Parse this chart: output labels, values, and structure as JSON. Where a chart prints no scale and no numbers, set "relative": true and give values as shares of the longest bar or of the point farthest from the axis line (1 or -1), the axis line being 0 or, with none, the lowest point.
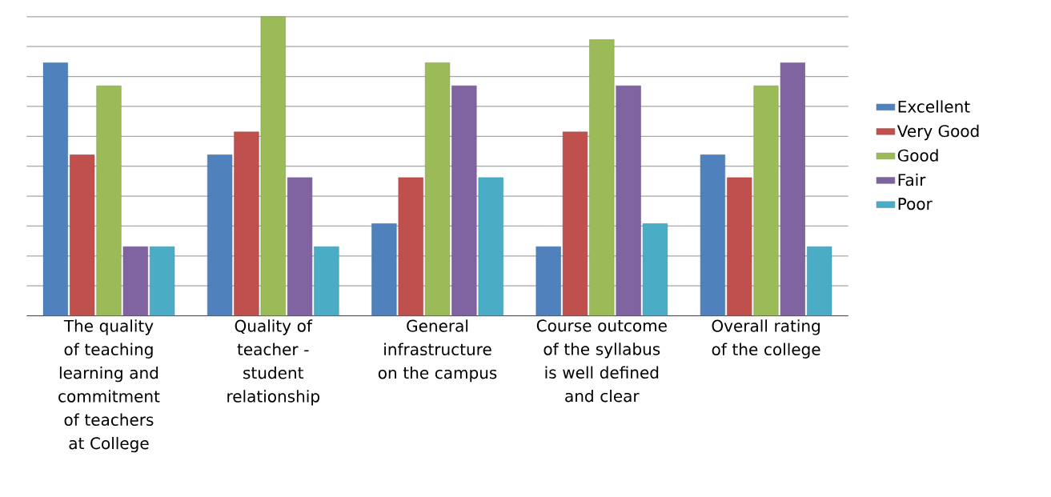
{
  "chart_data": {
    "type": "bar",
    "relative": true,
    "grid": "y",
    "legend": "right",
    "categories": [
      "The quality of teaching learning and commitment of teachers at College",
      "Quality of teacher - student relationship",
      "General infrastructure on the campus",
      "Course outcome of the syllabus is well defined and clear",
      "Overall rating of the college"
    ],
    "series": [
      {
        "name": "Excellent",
        "color": "#4f81bd",
        "values": [
          0.846,
          0.538,
          0.308,
          0.231,
          0.538
        ]
      },
      {
        "name": "Very Good",
        "color": "#c0504d",
        "values": [
          0.538,
          0.615,
          0.462,
          0.615,
          0.462
        ]
      },
      {
        "name": "Good",
        "color": "#9bbb59",
        "values": [
          0.769,
          1,
          0.846,
          0.923,
          0.769
        ]
      },
      {
        "name": "Fair",
        "color": "#8064a2",
        "values": [
          0.231,
          0.462,
          0.769,
          0.769,
          0.846
        ]
      },
      {
        "name": "Poor",
        "color": "#4bacc6",
        "values": [
          0.231,
          0.231,
          0.462,
          0.308,
          0.231
        ]
      }
    ]
  }
}
